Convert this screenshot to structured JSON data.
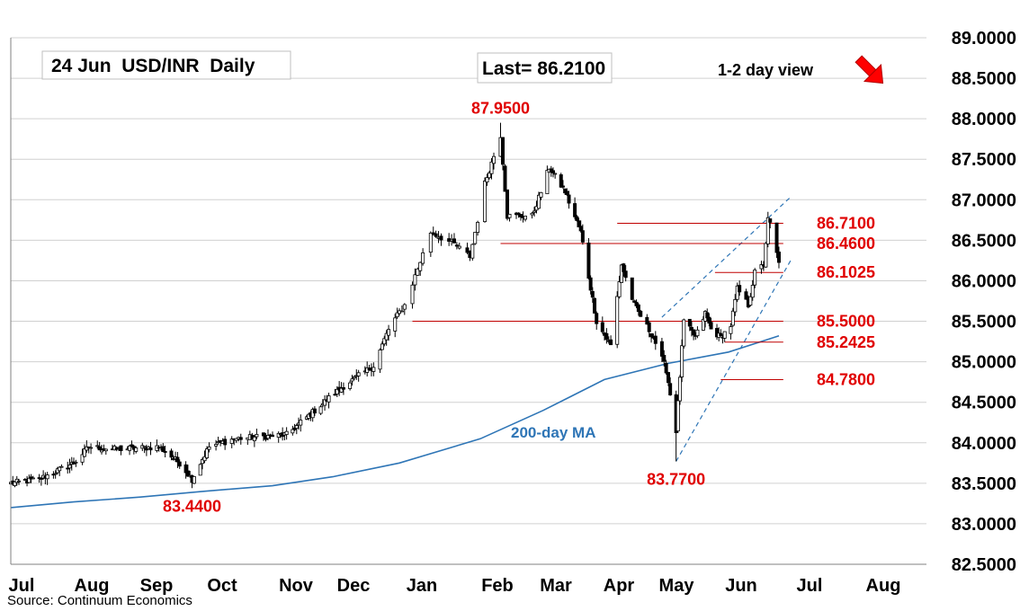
{
  "chart_data": {
    "type": "candlestick",
    "title": "24 Jun  USD/INR  Daily",
    "last_label": "Last= 86.2100",
    "view_label": "1-2 day view",
    "view_direction": "down",
    "source": "Source: Continuum Economics",
    "ylim": [
      82.5,
      89.0
    ],
    "y_ticks": [
      "89.0000",
      "88.5000",
      "88.0000",
      "87.5000",
      "87.0000",
      "86.5000",
      "86.0000",
      "85.5000",
      "85.0000",
      "84.5000",
      "84.0000",
      "83.5000",
      "83.0000",
      "82.5000"
    ],
    "x_ticks": [
      "Jul",
      "Aug",
      "Sep",
      "Oct",
      "Nov",
      "Dec",
      "Jan",
      "Feb",
      "Mar",
      "Apr",
      "May",
      "Jun",
      "Jul",
      "Aug"
    ],
    "grid": true,
    "colors": {
      "up": "#ffffff",
      "down": "#000000",
      "level_line": "#c00000",
      "level_text": "#e00000",
      "ma": "#2e75b6",
      "channel": "#2e75b6",
      "arrow": "#ff0000",
      "grid": "#d0d0d0"
    },
    "levels": [
      {
        "label": "86.7100",
        "value": 86.71,
        "from": "2025-04-07",
        "to": "2025-06-26"
      },
      {
        "label": "86.4600",
        "value": 86.46,
        "from": "2025-02-10",
        "to": "2025-06-26"
      },
      {
        "label": "86.1025",
        "value": 86.1025,
        "from": "2025-05-25",
        "to": "2025-06-26"
      },
      {
        "label": "85.5000",
        "value": 85.5,
        "from": "2025-01-06",
        "to": "2025-06-26"
      },
      {
        "label": "85.2425",
        "value": 85.2425,
        "from": "2025-05-30",
        "to": "2025-06-26"
      },
      {
        "label": "84.7800",
        "value": 84.78,
        "from": "2025-05-28",
        "to": "2025-06-26"
      }
    ],
    "peak_labels": [
      {
        "label": "87.9500",
        "date": "2025-02-10",
        "value": 87.95,
        "position": "above"
      },
      {
        "label": "83.7700",
        "date": "2025-05-05",
        "value": 83.77,
        "position": "below"
      },
      {
        "label": "83.4400",
        "date": "2024-09-26",
        "value": 83.44,
        "position": "below"
      }
    ],
    "moving_average": {
      "name": "200-day MA",
      "points": [
        [
          "2024-07-01",
          83.2
        ],
        [
          "2024-08-01",
          83.27
        ],
        [
          "2024-09-01",
          83.33
        ],
        [
          "2024-10-01",
          83.4
        ],
        [
          "2024-11-01",
          83.47
        ],
        [
          "2024-12-01",
          83.58
        ],
        [
          "2025-01-01",
          83.75
        ],
        [
          "2025-02-01",
          84.05
        ],
        [
          "2025-03-01",
          84.4
        ],
        [
          "2025-04-01",
          84.78
        ],
        [
          "2025-05-01",
          84.98
        ],
        [
          "2025-06-01",
          85.12
        ],
        [
          "2025-06-24",
          85.32
        ]
      ]
    },
    "channel": {
      "upper": [
        [
          "2025-04-28",
          85.55
        ],
        [
          "2025-06-30",
          87.05
        ]
      ],
      "lower": [
        [
          "2025-05-05",
          83.77
        ],
        [
          "2025-06-30",
          86.28
        ]
      ]
    },
    "ohlc_anchors": [
      [
        "2024-07-01",
        83.5
      ],
      [
        "2024-07-15",
        83.55
      ],
      [
        "2024-08-01",
        83.75
      ],
      [
        "2024-08-08",
        83.95
      ],
      [
        "2024-08-20",
        83.92
      ],
      [
        "2024-09-10",
        83.95
      ],
      [
        "2024-09-20",
        83.75
      ],
      [
        "2024-09-26",
        83.55
      ],
      [
        "2024-10-04",
        83.95
      ],
      [
        "2024-10-15",
        84.05
      ],
      [
        "2024-11-08",
        84.1
      ],
      [
        "2024-11-22",
        84.4
      ],
      [
        "2024-12-06",
        84.7
      ],
      [
        "2024-12-20",
        84.95
      ],
      [
        "2024-12-27",
        85.4
      ],
      [
        "2025-01-03",
        85.7
      ],
      [
        "2025-01-13",
        86.6
      ],
      [
        "2025-01-22",
        86.45
      ],
      [
        "2025-01-28",
        86.3
      ],
      [
        "2025-02-03",
        87.2
      ],
      [
        "2025-02-10",
        87.8
      ],
      [
        "2025-02-13",
        86.8
      ],
      [
        "2025-02-24",
        86.8
      ],
      [
        "2025-03-04",
        87.4
      ],
      [
        "2025-03-12",
        87.1
      ],
      [
        "2025-03-20",
        86.6
      ],
      [
        "2025-03-28",
        85.5
      ],
      [
        "2025-04-04",
        85.2
      ],
      [
        "2025-04-09",
        86.2
      ],
      [
        "2025-04-15",
        85.7
      ],
      [
        "2025-04-24",
        85.3
      ],
      [
        "2025-04-30",
        84.9
      ],
      [
        "2025-05-05",
        84.15
      ],
      [
        "2025-05-09",
        85.5
      ],
      [
        "2025-05-15",
        85.3
      ],
      [
        "2025-05-20",
        85.6
      ],
      [
        "2025-05-23",
        85.4
      ],
      [
        "2025-05-28",
        85.3
      ],
      [
        "2025-06-02",
        85.45
      ],
      [
        "2025-06-05",
        85.9
      ],
      [
        "2025-06-10",
        85.7
      ],
      [
        "2025-06-13",
        86.1
      ],
      [
        "2025-06-17",
        86.2
      ],
      [
        "2025-06-19",
        86.75
      ],
      [
        "2025-06-20",
        86.7
      ],
      [
        "2025-06-24",
        86.21
      ]
    ]
  }
}
